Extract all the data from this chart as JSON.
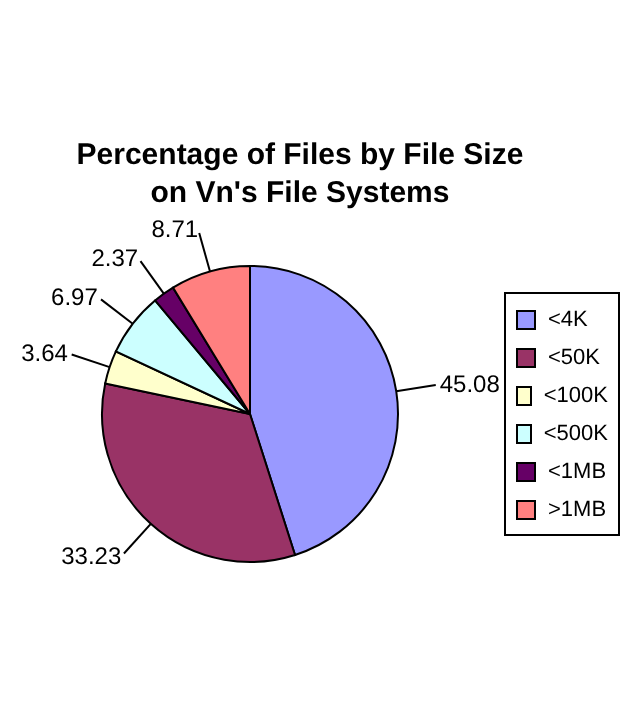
{
  "chart_data": {
    "type": "pie",
    "title": "Percentage of Files by File Size on Vn's File Systems",
    "categories": [
      "<4K",
      "<50K",
      "<100K",
      "<500K",
      "<1MB",
      ">1MB"
    ],
    "values": [
      45.08,
      33.23,
      3.64,
      6.97,
      2.37,
      8.71
    ],
    "colors": [
      "#9999ff",
      "#993366",
      "#ffffcc",
      "#ccffff",
      "#660066",
      "#ff8080"
    ],
    "data_labels": true,
    "legend": "right"
  }
}
